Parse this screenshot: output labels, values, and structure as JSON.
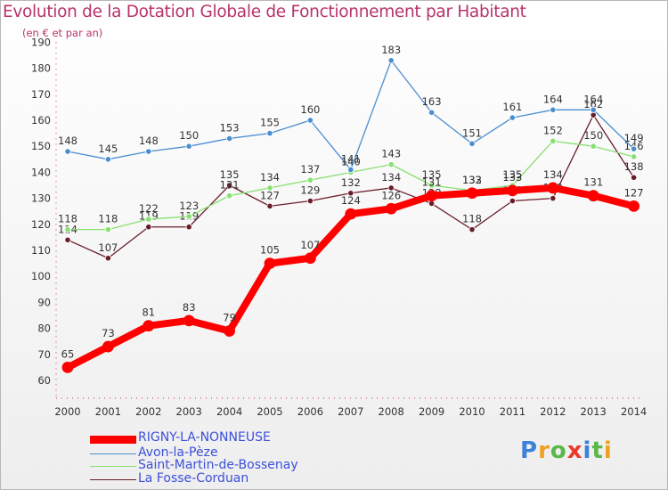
{
  "chart_data": {
    "type": "line",
    "title": "Evolution de la Dotation Globale de Fonctionnement par Habitant",
    "subtitle": "(en € et par an)",
    "xlabel": "",
    "ylabel": "",
    "x": [
      "2000",
      "2001",
      "2002",
      "2003",
      "2004",
      "2005",
      "2006",
      "2007",
      "2008",
      "2009",
      "2010",
      "2011",
      "2012",
      "2013",
      "2014"
    ],
    "ylim": [
      60,
      190
    ],
    "yticks": [
      60,
      70,
      80,
      90,
      100,
      110,
      120,
      130,
      140,
      150,
      160,
      170,
      180,
      190
    ],
    "grid": false,
    "legend_position": "bottom-left",
    "series": [
      {
        "name": "RIGNY-LA-NONNEUSE",
        "color": "#ff0000",
        "values": [
          65,
          73,
          81,
          83,
          79,
          105,
          107,
          124,
          126,
          131,
          132,
          133,
          134,
          131,
          127
        ]
      },
      {
        "name": "Avon-la-Pèze",
        "color": "#4a8ed0",
        "values": [
          148,
          145,
          148,
          150,
          153,
          155,
          160,
          141,
          183,
          163,
          151,
          161,
          164,
          164,
          149
        ]
      },
      {
        "name": "Saint-Martin-de-Bossenay",
        "color": "#88e070",
        "values": [
          118,
          118,
          122,
          123,
          131,
          134,
          137,
          140,
          143,
          135,
          133,
          135,
          152,
          150,
          146
        ]
      },
      {
        "name": "La Fosse-Corduan",
        "color": "#6a1e2a",
        "values": [
          114,
          107,
          119,
          119,
          135,
          127,
          129,
          132,
          134,
          128,
          118,
          129,
          130,
          162,
          138
        ]
      }
    ]
  }
}
